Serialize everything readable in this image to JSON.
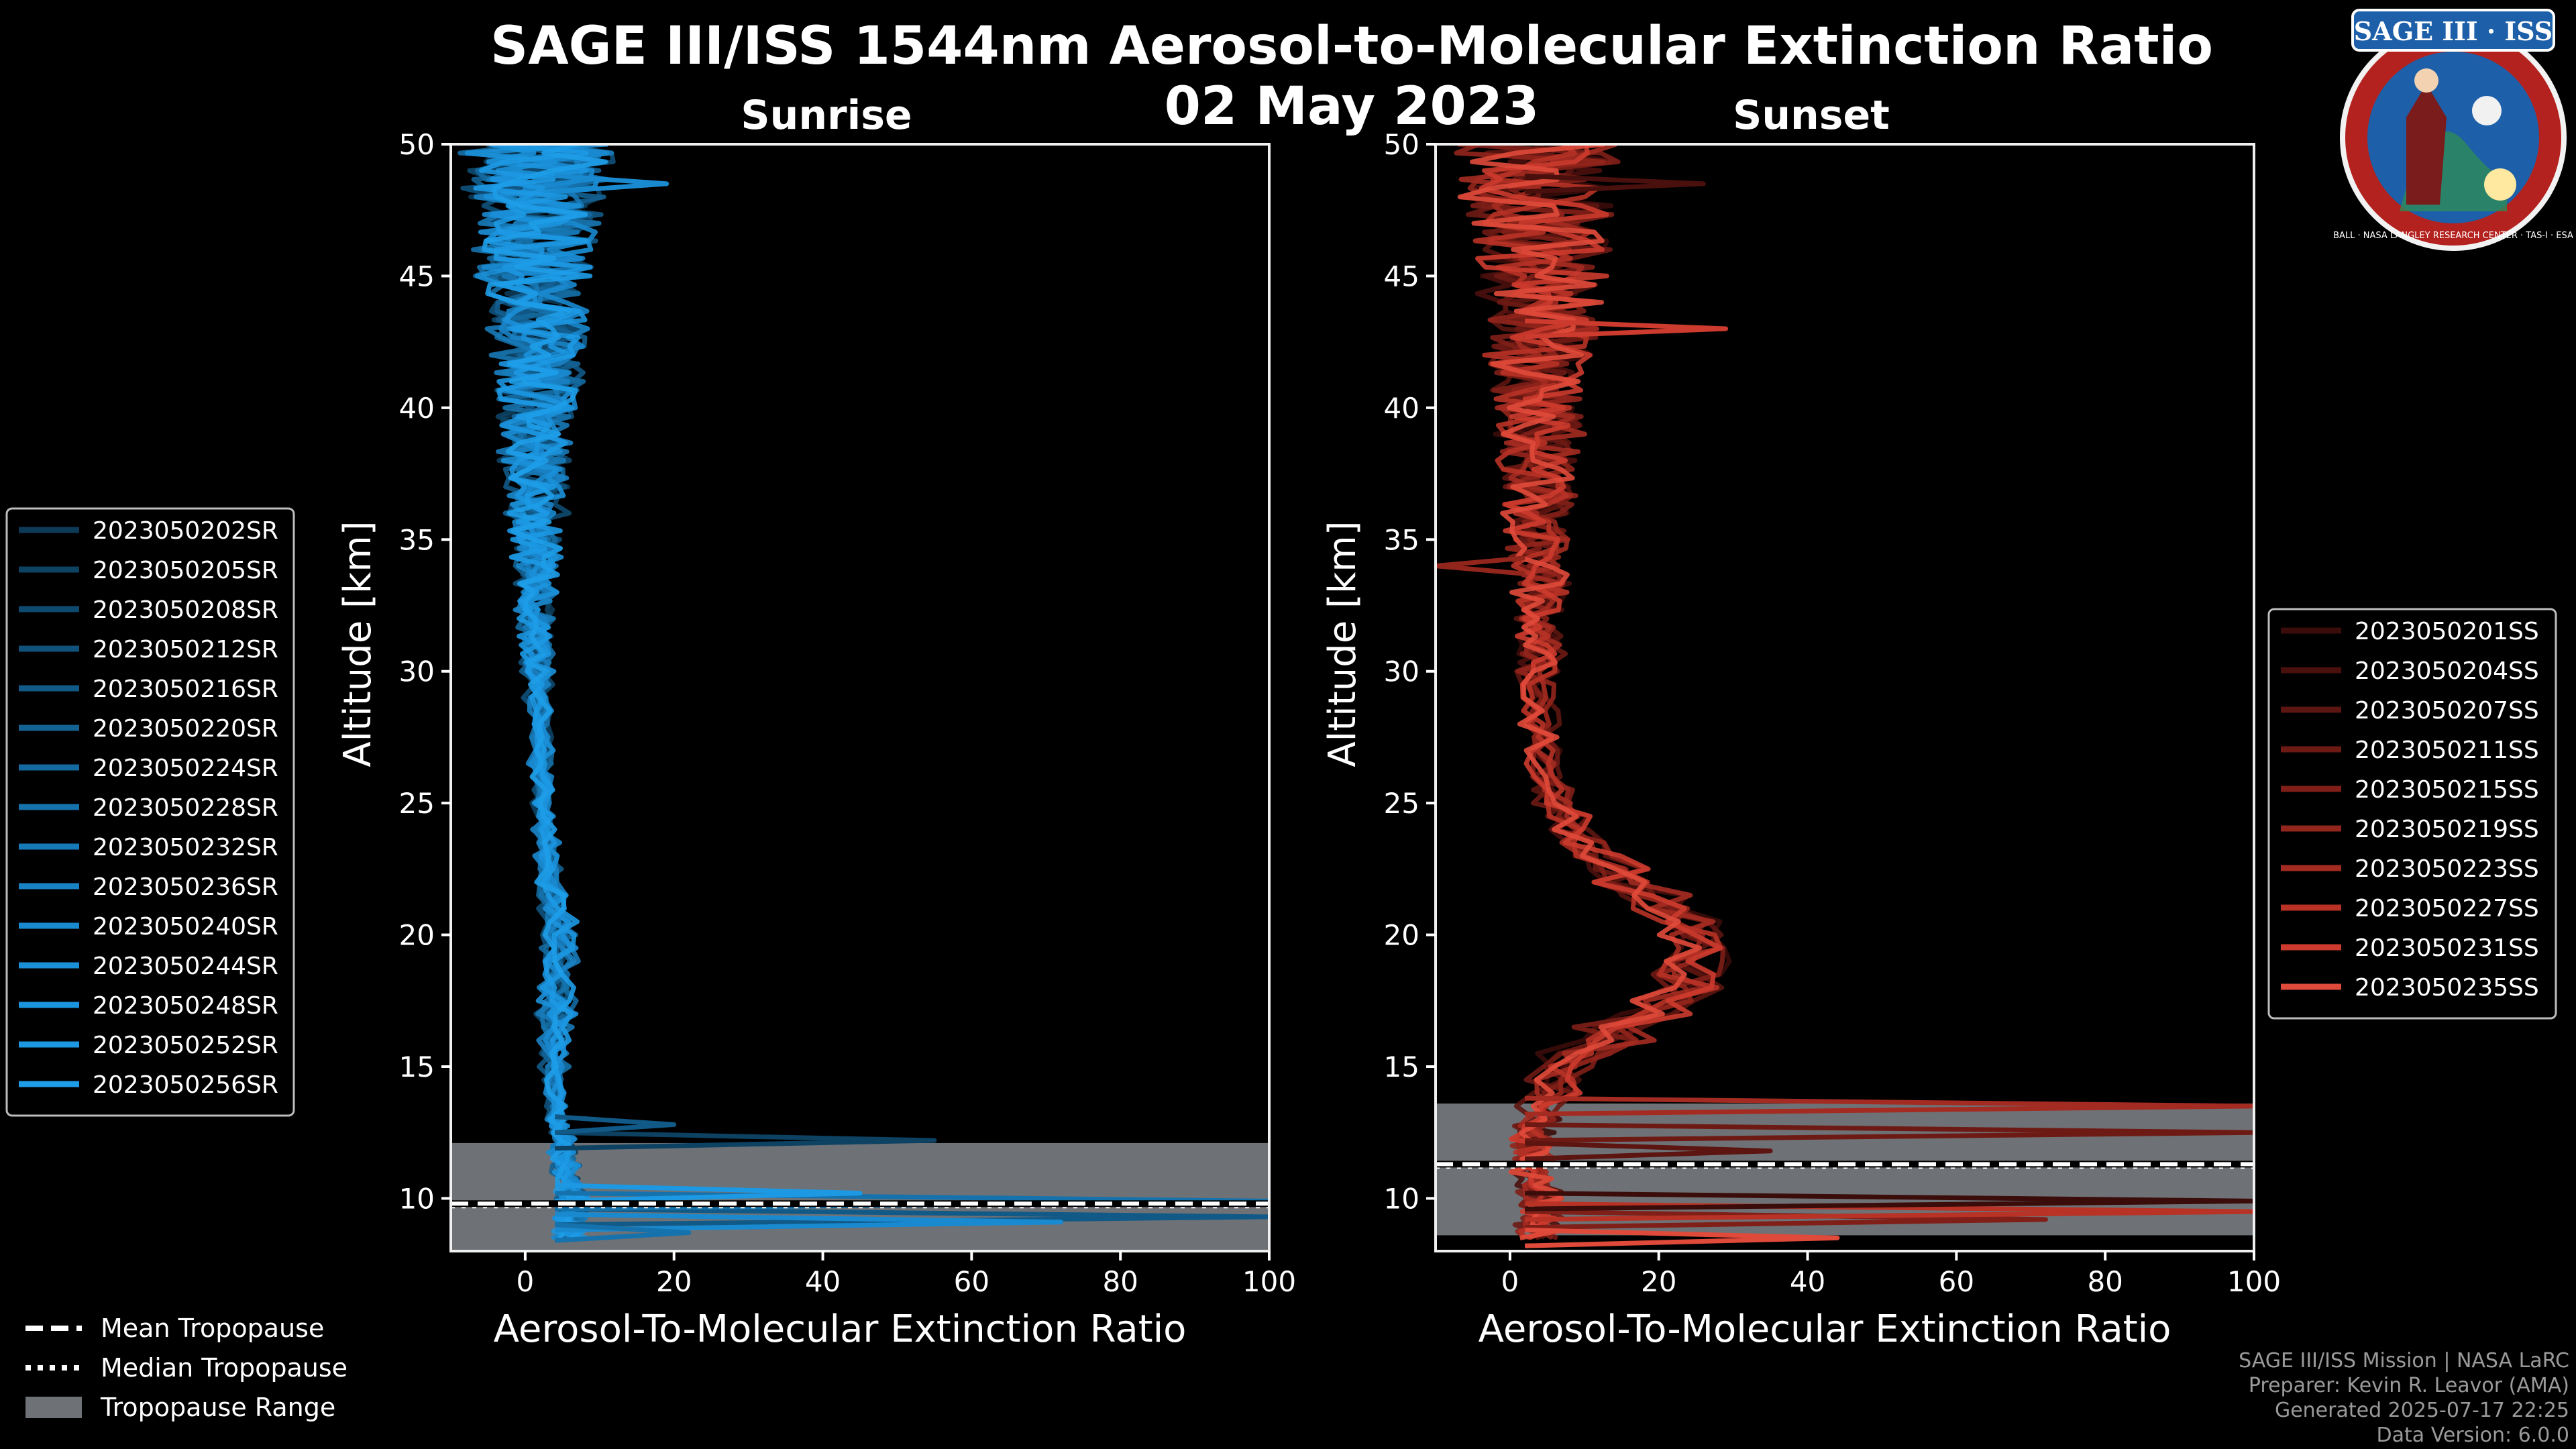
{
  "title": "SAGE III/ISS 1544nm Aerosol-to-Molecular Extinction Ratio",
  "date": "02 May 2023",
  "logo": {
    "text": "SAGE III · ISS",
    "ring_text": "BALL · NASA LANGLEY RESEARCH CENTER · TAS-I · ESA"
  },
  "footer": [
    "SAGE III/ISS Mission | NASA LaRC",
    "Preparer: Kevin R. Leavor (AMA)",
    "Generated 2025-07-17 22:25",
    "Data Version: 6.0.0"
  ],
  "tropo_legend": [
    {
      "label": "Mean Tropopause",
      "style": "dashed"
    },
    {
      "label": "Median Tropopause",
      "style": "dotted"
    },
    {
      "label": "Tropopause Range",
      "style": "band"
    }
  ],
  "chart_data": [
    {
      "type": "line",
      "panel": "left",
      "title": "Sunrise",
      "xlabel": "Aerosol-To-Molecular Extinction Ratio",
      "ylabel": "Altitude [km]",
      "xlim": [
        -10,
        100
      ],
      "ylim": [
        8,
        50
      ],
      "xticks": [
        0,
        20,
        40,
        60,
        80,
        100
      ],
      "yticks": [
        10,
        15,
        20,
        25,
        30,
        35,
        40,
        45,
        50
      ],
      "tropopause": {
        "mean": 9.8,
        "median": 9.7,
        "range": [
          8.0,
          12.1
        ]
      },
      "series_color": "#1a8fd4",
      "legend": [
        "2023050202SR",
        "2023050205SR",
        "2023050208SR",
        "2023050212SR",
        "2023050216SR",
        "2023050220SR",
        "2023050224SR",
        "2023050228SR",
        "2023050232SR",
        "2023050236SR",
        "2023050240SR",
        "2023050244SR",
        "2023050248SR",
        "2023050252SR",
        "2023050256SR"
      ],
      "legend_colors": [
        "#0c3a57",
        "#0d4263",
        "#0e4a70",
        "#10527c",
        "#115a88",
        "#136294",
        "#146aa0",
        "#1672ac",
        "#177ab8",
        "#1982c4",
        "#1a8ad0",
        "#1b90d8",
        "#1c95df",
        "#1d99e4",
        "#1e9de8"
      ],
      "profile_alt": [
        8.5,
        9,
        9.5,
        10,
        10.5,
        11,
        11.5,
        12,
        12.5,
        13,
        14,
        15,
        16,
        17,
        18,
        19,
        20,
        21,
        22,
        23,
        24,
        25,
        26,
        27,
        28,
        29,
        30,
        31,
        32,
        33,
        34,
        35,
        36,
        37,
        38,
        39,
        40,
        41,
        42,
        43,
        44,
        45,
        46,
        47,
        48,
        49,
        50
      ],
      "profile_base": [
        6,
        6,
        6,
        6,
        5.5,
        5.5,
        5,
        5,
        4.5,
        4.2,
        3.8,
        3.8,
        4,
        4.2,
        4.5,
        4.5,
        4.5,
        3.8,
        3.2,
        2.8,
        2.5,
        2.3,
        2.1,
        2,
        1.9,
        1.8,
        1.7,
        1.7,
        1.6,
        1.6,
        1.5,
        1.5,
        1.5,
        1.5,
        1.5,
        1.5,
        1.5,
        1.5,
        1.5,
        1.5,
        1.5,
        1.5,
        1.5,
        1.5,
        1.5,
        1.5,
        1.5
      ],
      "profile_noise": [
        2,
        2,
        2,
        2,
        1.5,
        1.5,
        1.5,
        1.5,
        1.2,
        1,
        1.2,
        1.6,
        2.2,
        2.6,
        2.6,
        2.4,
        2.2,
        1.8,
        1.4,
        1.2,
        1,
        1,
        1.1,
        1.2,
        1.3,
        1.5,
        1.7,
        2,
        2.3,
        2.6,
        3,
        3.4,
        3.8,
        4.2,
        4.6,
        5,
        5.5,
        6,
        6.5,
        7,
        7.5,
        8,
        8.5,
        9,
        9.5,
        10,
        10
      ],
      "spikes": [
        {
          "alt": 9.3,
          "x": 100
        },
        {
          "alt": 9.9,
          "x": 100
        },
        {
          "alt": 9.1,
          "x": 72
        },
        {
          "alt": 10.2,
          "x": 45
        },
        {
          "alt": 12.2,
          "x": 55
        },
        {
          "alt": 12.8,
          "x": 20
        },
        {
          "alt": 8.7,
          "x": 22
        },
        {
          "alt": 48.5,
          "x": 19
        }
      ]
    },
    {
      "type": "line",
      "panel": "right",
      "title": "Sunset",
      "xlabel": "Aerosol-To-Molecular Extinction Ratio",
      "ylabel": "Altitude [km]",
      "xlim": [
        -10,
        100
      ],
      "ylim": [
        8,
        50
      ],
      "xticks": [
        0,
        20,
        40,
        60,
        80,
        100
      ],
      "yticks": [
        10,
        15,
        20,
        25,
        30,
        35,
        40,
        45,
        50
      ],
      "tropopause": {
        "mean": 11.3,
        "median": 11.2,
        "range": [
          8.6,
          13.6
        ]
      },
      "series_color": "#e8503f",
      "legend": [
        "2023050201SS",
        "2023050204SS",
        "2023050207SS",
        "2023050211SS",
        "2023050215SS",
        "2023050219SS",
        "2023050223SS",
        "2023050227SS",
        "2023050231SS",
        "2023050235SS"
      ],
      "legend_colors": [
        "#3a0c0a",
        "#4a100d",
        "#5c1510",
        "#6e1a14",
        "#801f18",
        "#92251c",
        "#a42b21",
        "#b83226",
        "#cc3b2d",
        "#e04a3a"
      ],
      "profile_alt": [
        8.5,
        9,
        9.5,
        10,
        10.5,
        11,
        11.5,
        12,
        12.5,
        13,
        14,
        15,
        16,
        17,
        18,
        19,
        20,
        21,
        22,
        23,
        24,
        25,
        26,
        27,
        28,
        29,
        30,
        31,
        32,
        33,
        34,
        35,
        36,
        37,
        38,
        39,
        40,
        41,
        42,
        43,
        44,
        45,
        46,
        47,
        48,
        49,
        50
      ],
      "profile_base": [
        4,
        4,
        4,
        4,
        3,
        3,
        3,
        3,
        3,
        4,
        6,
        9,
        14,
        20,
        24,
        25,
        24,
        20,
        15,
        11,
        8,
        6,
        5,
        4.5,
        4,
        4,
        4,
        4,
        4,
        4,
        4,
        4,
        4,
        4,
        4,
        4,
        4,
        4,
        4,
        4,
        4,
        4,
        4,
        4,
        4,
        4,
        4
      ],
      "profile_noise": [
        3,
        3,
        3,
        3,
        2.5,
        2.5,
        2.5,
        2.5,
        2.5,
        3,
        4,
        5,
        5,
        5,
        5,
        4.5,
        4.5,
        4.5,
        4,
        3.5,
        3,
        2.5,
        2.2,
        2.2,
        2.4,
        2.6,
        2.8,
        3,
        3.2,
        3.5,
        3.8,
        4.2,
        4.6,
        5,
        5.5,
        6,
        6.5,
        7,
        7.5,
        8,
        8.5,
        9,
        9.5,
        10,
        10.5,
        11,
        11
      ],
      "spikes": [
        {
          "alt": 9.2,
          "x": 72
        },
        {
          "alt": 9.5,
          "x": 100
        },
        {
          "alt": 9.9,
          "x": 100
        },
        {
          "alt": 12.5,
          "x": 100
        },
        {
          "alt": 13.5,
          "x": 100
        },
        {
          "alt": 8.5,
          "x": 44
        },
        {
          "alt": 11.8,
          "x": 35
        },
        {
          "alt": 34.0,
          "x": -10
        },
        {
          "alt": 43.0,
          "x": 29
        },
        {
          "alt": 48.5,
          "x": 26
        }
      ]
    }
  ]
}
